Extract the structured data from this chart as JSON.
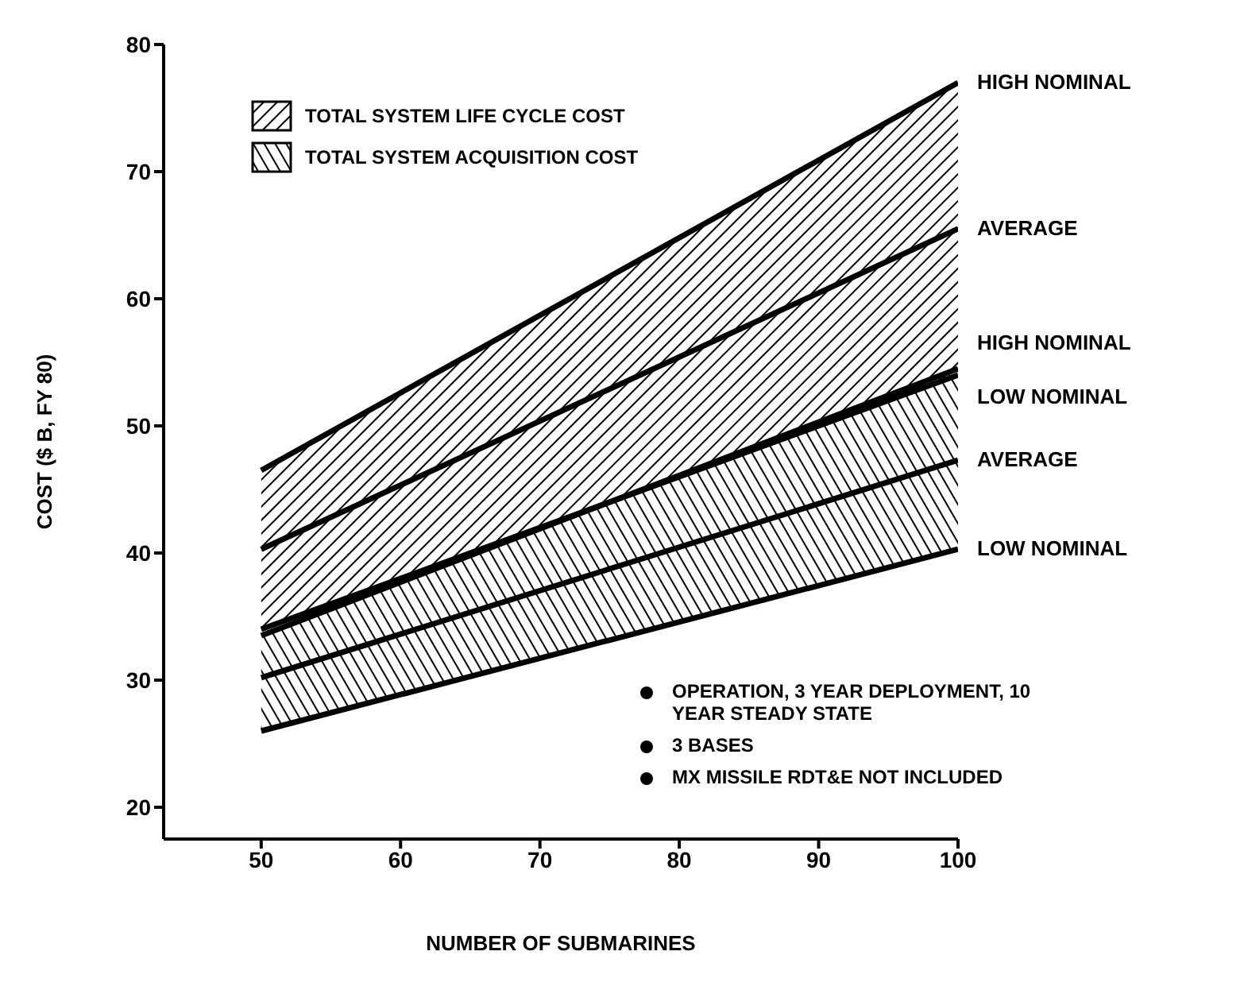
{
  "chart_data": {
    "type": "line",
    "xlabel": "NUMBER OF SUBMARINES",
    "ylabel": "COST ($ B, FY 80)",
    "x": [
      50,
      100
    ],
    "xlim": [
      43,
      100
    ],
    "xticks": [
      50,
      60,
      70,
      80,
      90,
      100
    ],
    "ylim": [
      17.5,
      80
    ],
    "yticks": [
      20,
      30,
      40,
      50,
      60,
      70,
      80
    ],
    "grid": false,
    "series": [
      {
        "name": "HIGH NOMINAL",
        "color": "#000000",
        "values": [
          46.5,
          77
        ]
      },
      {
        "name": "AVERAGE",
        "color": "#000000",
        "values": [
          40.3,
          65.5
        ],
        "lower": [
          34,
          54
        ],
        "upper": [
          46.5,
          77
        ]
      },
      {
        "name": "LOW NOMINAL",
        "color": "#000000",
        "values": [
          34,
          54
        ]
      },
      {
        "name": "HIGH NOMINAL",
        "color": "#000000",
        "values": [
          33.5,
          54.5
        ]
      },
      {
        "name": "AVERAGE",
        "color": "#000000",
        "values": [
          30.2,
          47.3
        ],
        "lower": [
          26,
          40.3
        ],
        "upper": [
          33.5,
          54.5
        ]
      },
      {
        "name": "LOW NOMINAL",
        "color": "#000000",
        "values": [
          26,
          40.3
        ]
      }
    ],
    "annotations": [
      "TOTAL SYSTEM LIFE CYCLE COST",
      "TOTAL SYSTEM ACQUISITION COST",
      "OPERATION, 3 YEAR DEPLOYMENT, 10 YEAR STEADY STATE",
      "3 BASES",
      "MX MISSILE RDT&E NOT INCLUDED"
    ]
  }
}
